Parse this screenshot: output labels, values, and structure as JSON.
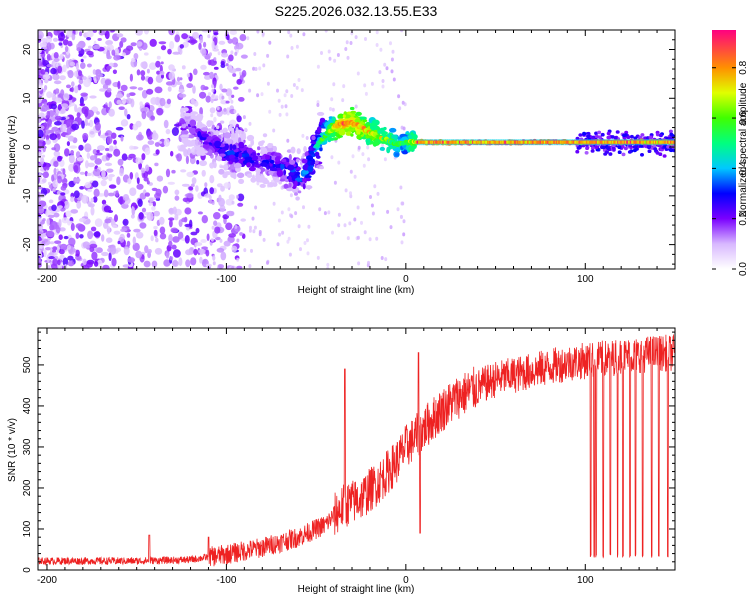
{
  "title": "S225.2026.032.13.55.E33",
  "chart_data": [
    {
      "type": "heatmap",
      "xlabel": "Height of straight line (km)",
      "ylabel": "Frequency (Hz)",
      "xlim": [
        -205,
        150
      ],
      "ylim": [
        -25,
        24
      ],
      "xticks": [
        -200,
        -100,
        0,
        100
      ],
      "yticks": [
        -20,
        -10,
        0,
        10,
        20
      ],
      "colorbar": {
        "label": "Normalized spectral amplitude",
        "range": [
          0,
          0.95
        ],
        "ticks": [
          "0.0",
          "0.2",
          "0.4",
          "0.6",
          "0.8"
        ],
        "stops": [
          {
            "value": 0.0,
            "color": "#ffffff"
          },
          {
            "value": 0.1,
            "color": "#d8b8ff"
          },
          {
            "value": 0.2,
            "color": "#7a00ff"
          },
          {
            "value": 0.3,
            "color": "#0000ff"
          },
          {
            "value": 0.4,
            "color": "#00c8ff"
          },
          {
            "value": 0.5,
            "color": "#00ff80"
          },
          {
            "value": 0.6,
            "color": "#40ff00"
          },
          {
            "value": 0.7,
            "color": "#e0ff00"
          },
          {
            "value": 0.8,
            "color": "#ff9000"
          },
          {
            "value": 0.95,
            "color": "#ff0080"
          }
        ]
      },
      "ridge": {
        "x": [
          -120,
          -110,
          -100,
          -90,
          -80,
          -70,
          -60,
          -55,
          -50,
          -45,
          -40,
          -35,
          -30,
          -25,
          -20,
          -15,
          -10,
          -5,
          0,
          10,
          20,
          50,
          100,
          150
        ],
        "y": [
          4,
          1,
          -1,
          -2,
          -3,
          -4,
          -6,
          -5,
          0,
          2.5,
          4,
          5,
          5,
          4,
          3,
          2,
          1.5,
          0.5,
          1,
          1,
          1,
          1,
          1,
          1
        ],
        "amplitude": [
          0.25,
          0.3,
          0.35,
          0.35,
          0.3,
          0.35,
          0.4,
          0.4,
          0.45,
          0.55,
          0.7,
          0.85,
          0.8,
          0.75,
          0.7,
          0.65,
          0.6,
          0.55,
          0.5,
          0.85,
          0.8,
          0.9,
          0.9,
          0.8
        ]
      }
    },
    {
      "type": "line",
      "xlabel": "Height of straight line (km)",
      "ylabel": "SNR (10 * v/v)",
      "xlim": [
        -205,
        150
      ],
      "ylim": [
        0,
        590
      ],
      "xticks": [
        -200,
        -100,
        0,
        100
      ],
      "yticks": [
        0,
        100,
        200,
        300,
        400,
        500
      ],
      "color": "#ee2222",
      "trend": {
        "x": [
          -205,
          -150,
          -120,
          -100,
          -80,
          -60,
          -45,
          -35,
          -25,
          -15,
          -5,
          0,
          10,
          20,
          30,
          40,
          50,
          60,
          70,
          80,
          90,
          100,
          110,
          120,
          130,
          140,
          150
        ],
        "y": [
          22,
          22,
          25,
          38,
          55,
          80,
          110,
          155,
          175,
          215,
          265,
          300,
          345,
          390,
          425,
          445,
          465,
          475,
          485,
          495,
          505,
          510,
          515,
          520,
          525,
          528,
          530
        ]
      },
      "spikes": [
        {
          "x": -143,
          "y": 85
        },
        {
          "x": -110,
          "y": 80
        },
        {
          "x": -34,
          "y": 490
        },
        {
          "x": 7,
          "y": 530
        },
        {
          "x": 8,
          "y": 90
        }
      ],
      "dropouts_x": [
        103,
        105,
        106,
        110,
        114,
        118,
        121,
        125,
        128,
        132,
        137,
        141,
        146
      ]
    }
  ]
}
